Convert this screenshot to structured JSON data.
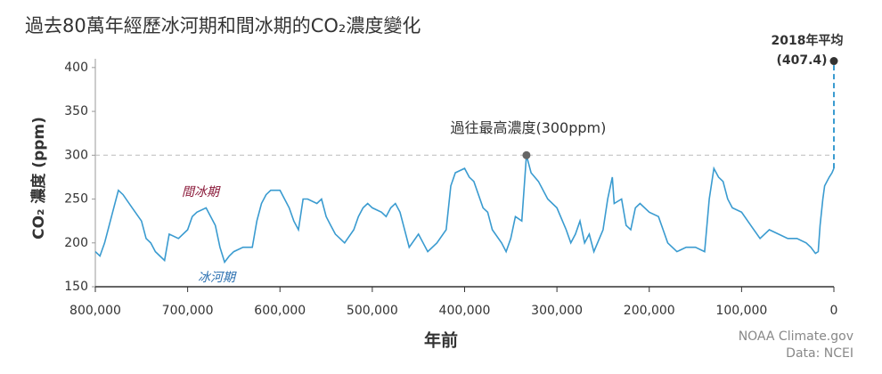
{
  "chart_data": {
    "type": "line",
    "title": "過去80萬年經歷冰河期和間冰期的CO₂濃度變化",
    "y_label": "CO₂ 濃度 (ppm)",
    "x_label": "年前",
    "color": "#3a9bd0",
    "x": [
      800000,
      795000,
      790000,
      780000,
      775000,
      770000,
      760000,
      750000,
      745000,
      740000,
      735000,
      730000,
      725000,
      720000,
      710000,
      700000,
      695000,
      690000,
      680000,
      675000,
      670000,
      665000,
      660000,
      655000,
      650000,
      640000,
      630000,
      625000,
      620000,
      615000,
      610000,
      600000,
      595000,
      590000,
      585000,
      580000,
      575000,
      570000,
      560000,
      555000,
      550000,
      545000,
      540000,
      535000,
      530000,
      520000,
      515000,
      510000,
      505000,
      500000,
      490000,
      485000,
      480000,
      475000,
      470000,
      460000,
      450000,
      440000,
      430000,
      420000,
      415000,
      410000,
      400000,
      395000,
      390000,
      380000,
      375000,
      370000,
      360000,
      355000,
      350000,
      345000,
      338000,
      333000,
      328000,
      320000,
      310000,
      300000,
      290000,
      285000,
      280000,
      275000,
      270000,
      265000,
      260000,
      250000,
      245000,
      240000,
      238000,
      230000,
      225000,
      220000,
      215000,
      210000,
      200000,
      190000,
      185000,
      180000,
      170000,
      160000,
      150000,
      140000,
      135000,
      130000,
      125000,
      120000,
      115000,
      110000,
      100000,
      90000,
      80000,
      70000,
      60000,
      50000,
      40000,
      30000,
      25000,
      20000,
      17000,
      15000,
      12000,
      10000,
      5000,
      2000,
      0
    ],
    "values": [
      190,
      185,
      200,
      240,
      260,
      255,
      240,
      225,
      205,
      200,
      190,
      185,
      180,
      210,
      205,
      215,
      230,
      235,
      240,
      230,
      220,
      195,
      178,
      185,
      190,
      195,
      195,
      225,
      245,
      255,
      260,
      260,
      250,
      240,
      225,
      215,
      250,
      250,
      245,
      250,
      230,
      220,
      210,
      205,
      200,
      215,
      230,
      240,
      245,
      240,
      235,
      230,
      240,
      245,
      235,
      195,
      210,
      190,
      200,
      215,
      265,
      280,
      285,
      275,
      270,
      240,
      235,
      215,
      200,
      190,
      205,
      230,
      225,
      300,
      280,
      270,
      250,
      240,
      215,
      200,
      210,
      225,
      200,
      210,
      190,
      215,
      250,
      275,
      245,
      250,
      220,
      215,
      240,
      245,
      235,
      230,
      215,
      200,
      190,
      195,
      195,
      190,
      250,
      285,
      275,
      270,
      250,
      240,
      235,
      220,
      205,
      215,
      210,
      205,
      205,
      200,
      195,
      188,
      190,
      220,
      250,
      265,
      275,
      280,
      285
    ],
    "xlim": [
      800000,
      0
    ],
    "ylim": [
      150,
      410
    ],
    "xticks": [
      {
        "value": 800000,
        "label": "800,000"
      },
      {
        "value": 700000,
        "label": "700,000"
      },
      {
        "value": 600000,
        "label": "600,000"
      },
      {
        "value": 500000,
        "label": "500,000"
      },
      {
        "value": 400000,
        "label": "400,000"
      },
      {
        "value": 300000,
        "label": "300,000"
      },
      {
        "value": 200000,
        "label": "200,000"
      },
      {
        "value": 100000,
        "label": "100,000"
      },
      0
    ],
    "yticks": [
      150,
      200,
      250,
      300,
      350,
      400
    ],
    "peak": {
      "x": 333000,
      "value": 300,
      "label": "過往最高濃度(300ppm)"
    },
    "current": {
      "x": 0,
      "value": 407.4,
      "label": "2018年平均",
      "value_label": "(407.4)"
    },
    "interglacial_label": "間冰期",
    "glacial_label": "冰河期",
    "source": "NOAA Climate.gov",
    "data_source": "Data: NCEI"
  }
}
